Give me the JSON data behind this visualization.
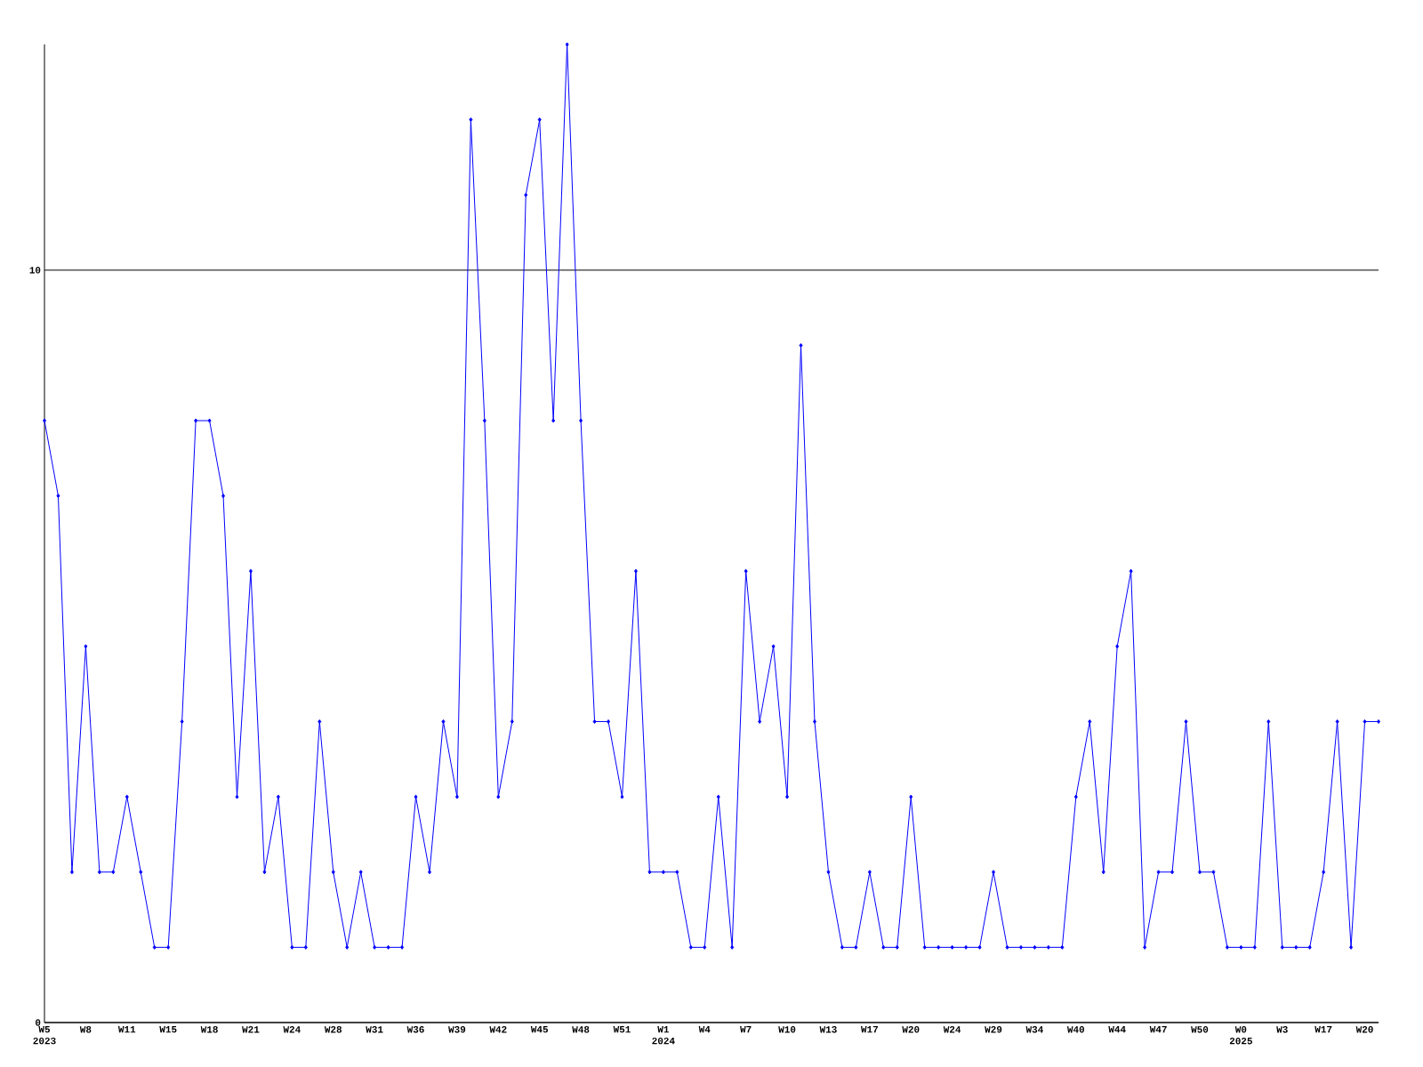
{
  "chart_data": {
    "type": "line",
    "categories": [
      "W5 2023",
      null,
      null,
      "W8",
      null,
      null,
      "W11",
      null,
      null,
      "W15",
      null,
      null,
      "W18",
      null,
      null,
      "W21",
      null,
      null,
      "W24",
      null,
      null,
      "W28",
      null,
      null,
      "W31",
      null,
      null,
      "W36",
      null,
      null,
      "W39",
      null,
      null,
      "W42",
      null,
      null,
      "W45",
      null,
      null,
      "W48",
      null,
      null,
      "W51",
      null,
      null,
      "W1 2024",
      null,
      null,
      "W4",
      null,
      null,
      "W7",
      null,
      null,
      "W10",
      null,
      null,
      "W13",
      null,
      null,
      "W17",
      null,
      null,
      "W20",
      null,
      null,
      "W24",
      null,
      null,
      "W29",
      null,
      null,
      "W34",
      null,
      null,
      "W40",
      null,
      null,
      "W44",
      null,
      null,
      "W47",
      null,
      null,
      "W50",
      null,
      null,
      "W0 2025",
      null,
      null,
      "W3",
      null,
      null,
      "W17",
      null,
      null,
      "W20",
      null
    ],
    "values": [
      8,
      7,
      2,
      5,
      2,
      2,
      3,
      2,
      1,
      1,
      4,
      8,
      8,
      7,
      3,
      6,
      2,
      3,
      1,
      1,
      4,
      2,
      1,
      2,
      1,
      1,
      1,
      3,
      2,
      4,
      3,
      12,
      8,
      3,
      4,
      11,
      12,
      8,
      13,
      8,
      4,
      4,
      3,
      6,
      2,
      2,
      2,
      1,
      1,
      3,
      1,
      6,
      4,
      5,
      3,
      9,
      4,
      2,
      1,
      1,
      2,
      1,
      1,
      3,
      1,
      1,
      1,
      1,
      1,
      2,
      1,
      1,
      1,
      1,
      1,
      3,
      4,
      2,
      5,
      6,
      1,
      2,
      2,
      4,
      2,
      2,
      1,
      1,
      1,
      4,
      1,
      1,
      1,
      2,
      4,
      1,
      4,
      4
    ],
    "color": "#0000ff",
    "ylim": [
      0,
      13
    ],
    "yticks": [
      0,
      10
    ],
    "grid": "y",
    "marker": "diamond",
    "line_style": "solid"
  }
}
